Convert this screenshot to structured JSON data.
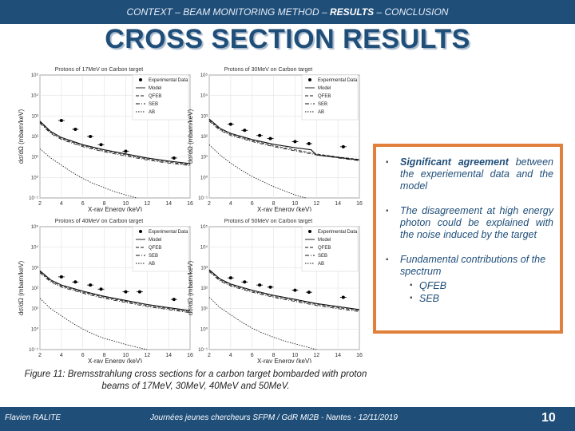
{
  "header": {
    "nav_part1": "CONTEXT – BEAM MONITORING METHOD – ",
    "nav_active": "RESULTS",
    "nav_part2": " – CONCLUSION",
    "title": "CROSS SECTION RESULTS"
  },
  "legend": {
    "exp": "Experimental Data",
    "model": "Model",
    "qfeb": "QFEB",
    "seb": "SEB",
    "ab": "AB"
  },
  "axes": {
    "xlabel": "X-ray Energy (keV)",
    "ylabel_frac": "dσ/dΩ",
    "ylabel": "(mbarn/keV)"
  },
  "chart_data": [
    {
      "type": "scatter",
      "title": "Protons of 17MeV on Carbon target",
      "xlabel": "X-ray Energy (keV)",
      "ylabel": "dσ/dΩ (mbarn/keV)",
      "xlim": [
        2,
        16
      ],
      "ylim_log10": [
        -1,
        5
      ],
      "y_scale": "log",
      "x_ticks": [
        "2",
        "4",
        "6",
        "8",
        "10",
        "12",
        "14",
        "16"
      ],
      "y_ticks": [
        "10⁵",
        "10⁴",
        "10³",
        "10²",
        "10¹",
        "10⁰",
        "10⁻¹"
      ],
      "legend": "top-right",
      "experimental": {
        "x": [
          4,
          5.3,
          6.7,
          7.7,
          10,
          14.5
        ],
        "log10_y": [
          2.78,
          2.35,
          2.0,
          1.6,
          1.28,
          0.95
        ]
      },
      "model_log10": {
        "x": [
          2,
          3,
          4,
          6,
          8,
          10,
          12,
          14,
          16
        ],
        "y": [
          2.75,
          2.25,
          1.95,
          1.6,
          1.35,
          1.15,
          0.95,
          0.8,
          0.68
        ]
      },
      "qfeb_log10": {
        "x": [
          2,
          3,
          4,
          6,
          8,
          10,
          12,
          14,
          16
        ],
        "y": [
          2.7,
          2.2,
          1.9,
          1.55,
          1.3,
          1.1,
          0.9,
          0.75,
          0.62
        ]
      },
      "seb_log10": {
        "x": [
          2,
          3,
          4,
          6,
          8,
          10,
          12,
          14,
          16
        ],
        "y": [
          2.65,
          2.15,
          1.85,
          1.5,
          1.25,
          1.05,
          0.85,
          0.7,
          0.58
        ]
      },
      "ab_log10": {
        "x": [
          2,
          3,
          4,
          5,
          6,
          7,
          8,
          9,
          10,
          11
        ],
        "y": [
          1.4,
          0.95,
          0.6,
          0.25,
          -0.05,
          -0.3,
          -0.5,
          -0.7,
          -0.85,
          -1.0
        ]
      }
    },
    {
      "type": "scatter",
      "title": "Protons of 30MeV on Carbon target",
      "xlabel": "X-ray Energy (keV)",
      "ylabel": "dσ/dΩ (mbarn/keV)",
      "xlim": [
        2,
        16
      ],
      "ylim_log10": [
        -1,
        5
      ],
      "y_scale": "log",
      "x_ticks": [
        "2",
        "4",
        "6",
        "8",
        "10",
        "12",
        "14",
        "16"
      ],
      "y_ticks": [
        "10⁵",
        "10⁴",
        "10³",
        "10²",
        "10¹",
        "10⁰",
        "10⁻¹"
      ],
      "legend": "top-right",
      "experimental": {
        "x": [
          4,
          5.3,
          6.7,
          7.7,
          10,
          11.3,
          14.5
        ],
        "log10_y": [
          2.6,
          2.3,
          2.05,
          1.9,
          1.75,
          1.65,
          1.5
        ]
      },
      "model_log10": {
        "x": [
          2,
          3,
          4,
          6,
          8,
          10,
          11.5,
          12,
          14,
          16
        ],
        "y": [
          2.85,
          2.4,
          2.15,
          1.85,
          1.62,
          1.45,
          1.35,
          1.1,
          0.98,
          0.85
        ]
      },
      "qfeb_log10": {
        "x": [
          2,
          3,
          4,
          6,
          8,
          10,
          12,
          14,
          16
        ],
        "y": [
          2.8,
          2.35,
          2.1,
          1.8,
          1.55,
          1.35,
          1.15,
          1.0,
          0.88
        ]
      },
      "seb_log10": {
        "x": [
          2,
          3,
          4,
          6,
          8,
          10,
          12,
          14,
          16
        ],
        "y": [
          2.75,
          2.3,
          2.05,
          1.75,
          1.5,
          1.3,
          1.1,
          0.95,
          0.82
        ]
      },
      "ab_log10": {
        "x": [
          2,
          3,
          4,
          5,
          6,
          7,
          8,
          9,
          10,
          11
        ],
        "y": [
          1.6,
          1.1,
          0.7,
          0.35,
          0.05,
          -0.2,
          -0.45,
          -0.65,
          -0.85,
          -1.0
        ]
      }
    },
    {
      "type": "scatter",
      "title": "Protons of 40MeV on Carbon target",
      "xlabel": "X-ray Energy (keV)",
      "ylabel": "dσ/dΩ (mbarn/keV)",
      "xlim": [
        2,
        16
      ],
      "ylim_log10": [
        -1,
        5
      ],
      "y_scale": "log",
      "x_ticks": [
        "2",
        "4",
        "6",
        "8",
        "10",
        "12",
        "14",
        "16"
      ],
      "y_ticks": [
        "10⁵",
        "10⁴",
        "10³",
        "10²",
        "10¹",
        "10⁰",
        "10⁻¹"
      ],
      "legend": "top-right",
      "experimental": {
        "x": [
          4,
          5.3,
          6.7,
          7.7,
          10,
          11.3,
          14.5
        ],
        "log10_y": [
          2.55,
          2.3,
          2.15,
          1.95,
          1.82,
          1.82,
          1.45
        ]
      },
      "model_log10": {
        "x": [
          2,
          3,
          4,
          6,
          8,
          10,
          12,
          14,
          16
        ],
        "y": [
          2.85,
          2.4,
          2.15,
          1.85,
          1.6,
          1.4,
          1.2,
          1.05,
          0.9
        ]
      },
      "qfeb_log10": {
        "x": [
          2,
          3,
          4,
          6,
          8,
          10,
          12,
          14,
          16
        ],
        "y": [
          2.8,
          2.35,
          2.1,
          1.8,
          1.55,
          1.35,
          1.15,
          1.0,
          0.85
        ]
      },
      "seb_log10": {
        "x": [
          2,
          3,
          4,
          6,
          8,
          10,
          12,
          14,
          16
        ],
        "y": [
          2.75,
          2.3,
          2.05,
          1.75,
          1.5,
          1.3,
          1.1,
          0.95,
          0.8
        ]
      },
      "ab_log10": {
        "x": [
          2,
          3,
          4,
          5,
          6,
          7,
          8,
          9,
          10,
          11,
          12
        ],
        "y": [
          1.5,
          1.0,
          0.65,
          0.3,
          0.0,
          -0.25,
          -0.45,
          -0.6,
          -0.75,
          -0.88,
          -1.0
        ]
      }
    },
    {
      "type": "scatter",
      "title": "Protons of 50MeV on Carbon target",
      "xlabel": "X-ray Energy (keV)",
      "ylabel": "dσ/dΩ (mbarn/keV)",
      "xlim": [
        2,
        16
      ],
      "ylim_log10": [
        -1,
        5
      ],
      "y_scale": "log",
      "x_ticks": [
        "2",
        "4",
        "6",
        "8",
        "10",
        "12",
        "14",
        "16"
      ],
      "y_ticks": [
        "10⁵",
        "10⁴",
        "10³",
        "10²",
        "10¹",
        "10⁰",
        "10⁻¹"
      ],
      "legend": "top-right",
      "experimental": {
        "x": [
          4,
          5.3,
          6.7,
          7.7,
          10,
          11.3,
          14.5
        ],
        "log10_y": [
          2.5,
          2.3,
          2.15,
          2.05,
          1.9,
          1.8,
          1.55
        ]
      },
      "model_log10": {
        "x": [
          2,
          3,
          4,
          6,
          8,
          10,
          12,
          14,
          16
        ],
        "y": [
          2.9,
          2.45,
          2.2,
          1.9,
          1.65,
          1.45,
          1.25,
          1.1,
          0.95
        ]
      },
      "qfeb_log10": {
        "x": [
          2,
          3,
          4,
          6,
          8,
          10,
          12,
          14,
          16
        ],
        "y": [
          2.85,
          2.4,
          2.15,
          1.85,
          1.6,
          1.4,
          1.2,
          1.05,
          0.9
        ]
      },
      "seb_log10": {
        "x": [
          2,
          3,
          4,
          6,
          8,
          10,
          12,
          14,
          16
        ],
        "y": [
          2.8,
          2.35,
          2.1,
          1.8,
          1.55,
          1.35,
          1.15,
          1.0,
          0.85
        ]
      },
      "ab_log10": {
        "x": [
          2,
          3,
          4,
          5,
          6,
          7,
          8,
          9,
          10,
          11,
          12
        ],
        "y": [
          1.55,
          1.05,
          0.7,
          0.35,
          0.05,
          -0.2,
          -0.4,
          -0.58,
          -0.72,
          -0.86,
          -1.0
        ]
      }
    }
  ],
  "panel": {
    "b1_strong": "Significant agreement",
    "b1_rest": " between the experiemental data and the model",
    "b2": "The disagreement at high energy photon could be explained with the noise induced by the target",
    "b3": "Fundamental contributions of the spectrum",
    "b3_sub1": "QFEB",
    "b3_sub2": "SEB"
  },
  "caption": "Figure 11: Bremsstrahlung cross sections for a carbon target bombarded with proton beams of 17MeV, 30MeV, 40MeV and 50MeV.",
  "footer": {
    "author": "Flavien RALITE",
    "event": "Journées jeunes chercheurs SFPM / GdR MI2B - Nantes - 12/11/2019",
    "page": "10"
  }
}
